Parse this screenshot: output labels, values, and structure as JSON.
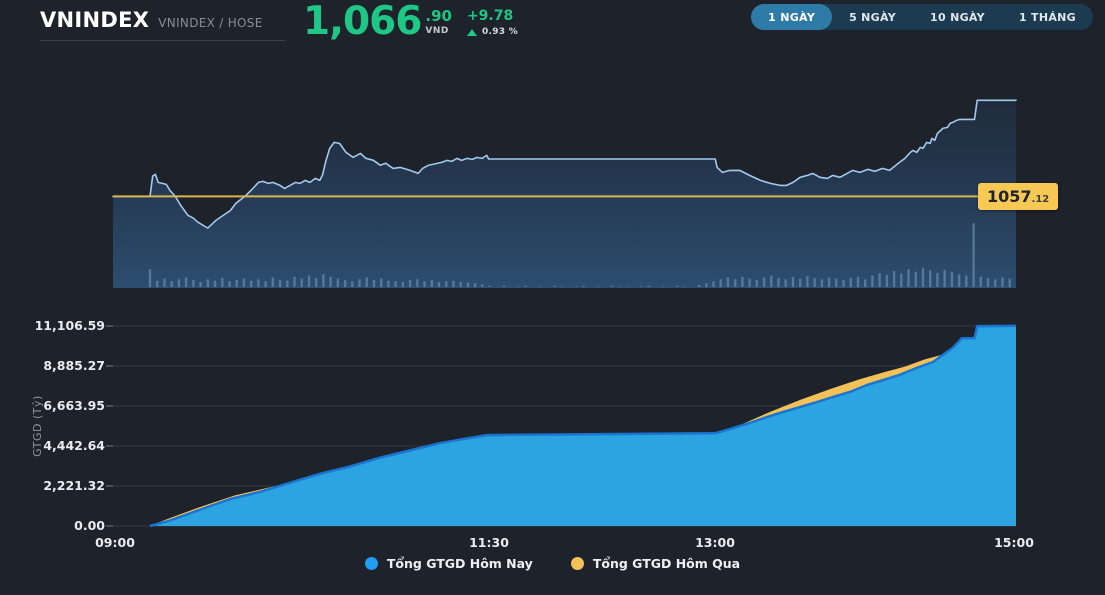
{
  "header": {
    "title": "VNINDEX",
    "subtitle": "VNINDEX / HOSE",
    "price": {
      "integer": "1,066",
      "decimal": ".90",
      "currency": "VND",
      "change": "+9.78",
      "change_pct": "0.93 %",
      "direction": "up"
    },
    "ranges": [
      {
        "label": "1 NGÀY",
        "active": true
      },
      {
        "label": "5 NGÀY",
        "active": false
      },
      {
        "label": "10 NGÀY",
        "active": false
      },
      {
        "label": "1 THÁNG",
        "active": false
      }
    ]
  },
  "colors": {
    "background": "#1e222a",
    "up_green": "#1ec785",
    "price_line": "#a3c9ed",
    "ref_yellow_line": "#d9b74c",
    "ref_label_bg": "#f8c855",
    "grid": "#343941",
    "volume_bar": "#7fa6c4",
    "gtgd_today_fill": "#2da4e2",
    "gtgd_today_stroke": "#1a75d0",
    "gtgd_today_dot": "#1f9ef2",
    "gtgd_yesterday_fill": "#f3c158",
    "range_active_bg": "#2e7ba7",
    "range_bar_bg": "#1c3a50"
  },
  "chart_data": [
    {
      "type": "line",
      "title": "VNINDEX intraday price",
      "x_range": [
        "09:00",
        "15:00"
      ],
      "ylim": [
        1047.8,
        1071.0
      ],
      "reference": {
        "value": 1057.12,
        "label_main": "1057",
        "label_decimal": ".12"
      },
      "last_price": 1066.9,
      "points": [
        [
          0,
          1057.12
        ],
        [
          0.041,
          1057.12
        ],
        [
          0.044,
          1059.2
        ],
        [
          0.047,
          1059.36
        ],
        [
          0.05,
          1058.55
        ],
        [
          0.059,
          1058.34
        ],
        [
          0.063,
          1057.73
        ],
        [
          0.069,
          1057.12
        ],
        [
          0.075,
          1056.2
        ],
        [
          0.083,
          1055.2
        ],
        [
          0.089,
          1054.9
        ],
        [
          0.094,
          1054.5
        ],
        [
          0.102,
          1054.06
        ],
        [
          0.105,
          1053.9
        ],
        [
          0.114,
          1054.68
        ],
        [
          0.122,
          1055.19
        ],
        [
          0.13,
          1055.69
        ],
        [
          0.136,
          1056.41
        ],
        [
          0.146,
          1057.12
        ],
        [
          0.155,
          1057.93
        ],
        [
          0.161,
          1058.55
        ],
        [
          0.166,
          1058.65
        ],
        [
          0.172,
          1058.44
        ],
        [
          0.177,
          1058.55
        ],
        [
          0.185,
          1058.24
        ],
        [
          0.19,
          1057.93
        ],
        [
          0.196,
          1058.24
        ],
        [
          0.202,
          1058.55
        ],
        [
          0.207,
          1058.44
        ],
        [
          0.213,
          1058.75
        ],
        [
          0.218,
          1058.55
        ],
        [
          0.224,
          1058.95
        ],
        [
          0.229,
          1058.75
        ],
        [
          0.232,
          1059.3
        ],
        [
          0.236,
          1060.8
        ],
        [
          0.24,
          1062.0
        ],
        [
          0.245,
          1062.62
        ],
        [
          0.251,
          1062.5
        ],
        [
          0.258,
          1061.6
        ],
        [
          0.266,
          1061.1
        ],
        [
          0.274,
          1061.5
        ],
        [
          0.28,
          1061.0
        ],
        [
          0.288,
          1060.8
        ],
        [
          0.296,
          1060.3
        ],
        [
          0.302,
          1060.5
        ],
        [
          0.31,
          1059.97
        ],
        [
          0.318,
          1060.07
        ],
        [
          0.329,
          1059.77
        ],
        [
          0.338,
          1059.46
        ],
        [
          0.343,
          1059.97
        ],
        [
          0.349,
          1060.28
        ],
        [
          0.359,
          1060.48
        ],
        [
          0.364,
          1060.58
        ],
        [
          0.37,
          1060.78
        ],
        [
          0.375,
          1060.68
        ],
        [
          0.381,
          1060.99
        ],
        [
          0.386,
          1060.78
        ],
        [
          0.392,
          1060.99
        ],
        [
          0.398,
          1060.89
        ],
        [
          0.403,
          1061.09
        ],
        [
          0.409,
          1060.99
        ],
        [
          0.412,
          1061.19
        ],
        [
          0.414,
          1061.29
        ],
        [
          0.416,
          1060.93
        ],
        [
          0.667,
          1060.93
        ],
        [
          0.669,
          1060.07
        ],
        [
          0.675,
          1059.56
        ],
        [
          0.683,
          1059.77
        ],
        [
          0.694,
          1059.77
        ],
        [
          0.705,
          1059.26
        ],
        [
          0.717,
          1058.75
        ],
        [
          0.728,
          1058.44
        ],
        [
          0.739,
          1058.24
        ],
        [
          0.746,
          1058.24
        ],
        [
          0.753,
          1058.55
        ],
        [
          0.761,
          1059.06
        ],
        [
          0.769,
          1059.26
        ],
        [
          0.775,
          1059.46
        ],
        [
          0.783,
          1059.06
        ],
        [
          0.791,
          1058.95
        ],
        [
          0.797,
          1059.26
        ],
        [
          0.805,
          1059.06
        ],
        [
          0.813,
          1059.46
        ],
        [
          0.819,
          1059.77
        ],
        [
          0.827,
          1059.56
        ],
        [
          0.836,
          1059.87
        ],
        [
          0.844,
          1059.67
        ],
        [
          0.852,
          1059.97
        ],
        [
          0.86,
          1059.77
        ],
        [
          0.864,
          1060.07
        ],
        [
          0.871,
          1060.58
        ],
        [
          0.877,
          1060.99
        ],
        [
          0.883,
          1061.6
        ],
        [
          0.886,
          1061.8
        ],
        [
          0.89,
          1061.6
        ],
        [
          0.894,
          1062.11
        ],
        [
          0.897,
          1062.01
        ],
        [
          0.901,
          1062.62
        ],
        [
          0.905,
          1062.52
        ],
        [
          0.907,
          1063.03
        ],
        [
          0.91,
          1062.82
        ],
        [
          0.913,
          1063.53
        ],
        [
          0.919,
          1064.04
        ],
        [
          0.924,
          1064.14
        ],
        [
          0.927,
          1064.55
        ],
        [
          0.93,
          1064.65
        ],
        [
          0.934,
          1064.85
        ],
        [
          0.938,
          1064.96
        ],
        [
          0.954,
          1064.96
        ],
        [
          0.957,
          1066.9
        ],
        [
          1,
          1066.9
        ]
      ],
      "volume_bars": {
        "start_t": 0.041,
        "step_t": 0.008,
        "max_frac": 0.28,
        "values": [
          28,
          10,
          13,
          9,
          12,
          15,
          11,
          8,
          12,
          10,
          14,
          9,
          11,
          13,
          10,
          12,
          9,
          15,
          11,
          10,
          16,
          13,
          18,
          14,
          20,
          16,
          13,
          11,
          9,
          12,
          15,
          11,
          13,
          10,
          9,
          8,
          11,
          12,
          9,
          11,
          8,
          9,
          10,
          8,
          7,
          6,
          4,
          2,
          0,
          2,
          0,
          1,
          2,
          0,
          1,
          0,
          2,
          1,
          0,
          1,
          2,
          0,
          1,
          0,
          2,
          1,
          1,
          0,
          1,
          2,
          0,
          1,
          0,
          2,
          1,
          0,
          3,
          6,
          9,
          12,
          15,
          12,
          16,
          13,
          11,
          15,
          18,
          14,
          12,
          16,
          13,
          17,
          14,
          12,
          15,
          13,
          11,
          14,
          16,
          12,
          18,
          22,
          19,
          25,
          21,
          28,
          24,
          30,
          26,
          22,
          27,
          24,
          20,
          18,
          100,
          16,
          14,
          12,
          15,
          13
        ]
      }
    },
    {
      "type": "area",
      "ylabel": "GTGD (Tỷ)",
      "ylim": [
        0,
        11106.59
      ],
      "yticks": [
        "11,106.59",
        "8,885.27",
        "6,663.95",
        "4,442.64",
        "2,221.32",
        "0.00"
      ],
      "ytick_values": [
        11106.59,
        8885.27,
        6663.95,
        4442.64,
        2221.32,
        0
      ],
      "xticks": [
        {
          "label": "09:00",
          "t": 0
        },
        {
          "label": "11:30",
          "t": 0.4167
        },
        {
          "label": "13:00",
          "t": 0.6667
        },
        {
          "label": "15:00",
          "t": 1
        }
      ],
      "series": [
        {
          "name": "Tổng GTGD Hôm Qua",
          "color": "#f3c158",
          "points": [
            [
              0.041,
              0
            ],
            [
              0.058,
              350
            ],
            [
              0.096,
              1050
            ],
            [
              0.135,
              1700
            ],
            [
              0.174,
              2150
            ],
            [
              0.207,
              2500
            ],
            [
              0.251,
              3050
            ],
            [
              0.296,
              3750
            ],
            [
              0.34,
              4250
            ],
            [
              0.384,
              4650
            ],
            [
              0.414,
              4880
            ],
            [
              0.667,
              4980
            ],
            [
              0.694,
              5600
            ],
            [
              0.728,
              6350
            ],
            [
              0.761,
              7000
            ],
            [
              0.794,
              7600
            ],
            [
              0.827,
              8150
            ],
            [
              0.855,
              8560
            ],
            [
              0.877,
              8850
            ],
            [
              0.899,
              9250
            ],
            [
              0.916,
              9480
            ],
            [
              0.938,
              9900
            ],
            [
              1,
              10300
            ]
          ]
        },
        {
          "name": "Tổng GTGD Hôm Nay",
          "color": "#2da4e2",
          "stroke": "#1a75d0",
          "points": [
            [
              0.041,
              0
            ],
            [
              0.063,
              300
            ],
            [
              0.096,
              900
            ],
            [
              0.13,
              1500
            ],
            [
              0.163,
              1900
            ],
            [
              0.196,
              2400
            ],
            [
              0.229,
              2900
            ],
            [
              0.262,
              3300
            ],
            [
              0.296,
              3800
            ],
            [
              0.329,
              4200
            ],
            [
              0.362,
              4600
            ],
            [
              0.39,
              4850
            ],
            [
              0.414,
              5050
            ],
            [
              0.667,
              5150
            ],
            [
              0.687,
              5450
            ],
            [
              0.705,
              5720
            ],
            [
              0.724,
              6050
            ],
            [
              0.742,
              6330
            ],
            [
              0.761,
              6610
            ],
            [
              0.78,
              6890
            ],
            [
              0.797,
              7160
            ],
            [
              0.816,
              7440
            ],
            [
              0.835,
              7830
            ],
            [
              0.853,
              8110
            ],
            [
              0.871,
              8390
            ],
            [
              0.89,
              8780
            ],
            [
              0.908,
              9110
            ],
            [
              0.919,
              9500
            ],
            [
              0.93,
              9890
            ],
            [
              0.936,
              10200
            ],
            [
              0.94,
              10430
            ],
            [
              0.954,
              10430
            ],
            [
              0.957,
              11100
            ],
            [
              1,
              11110
            ]
          ]
        }
      ],
      "legend": [
        {
          "label": "Tổng GTGD Hôm Nay",
          "color": "#1f9ef2"
        },
        {
          "label": "Tổng GTGD Hôm Qua",
          "color": "#f3c158"
        }
      ]
    }
  ]
}
